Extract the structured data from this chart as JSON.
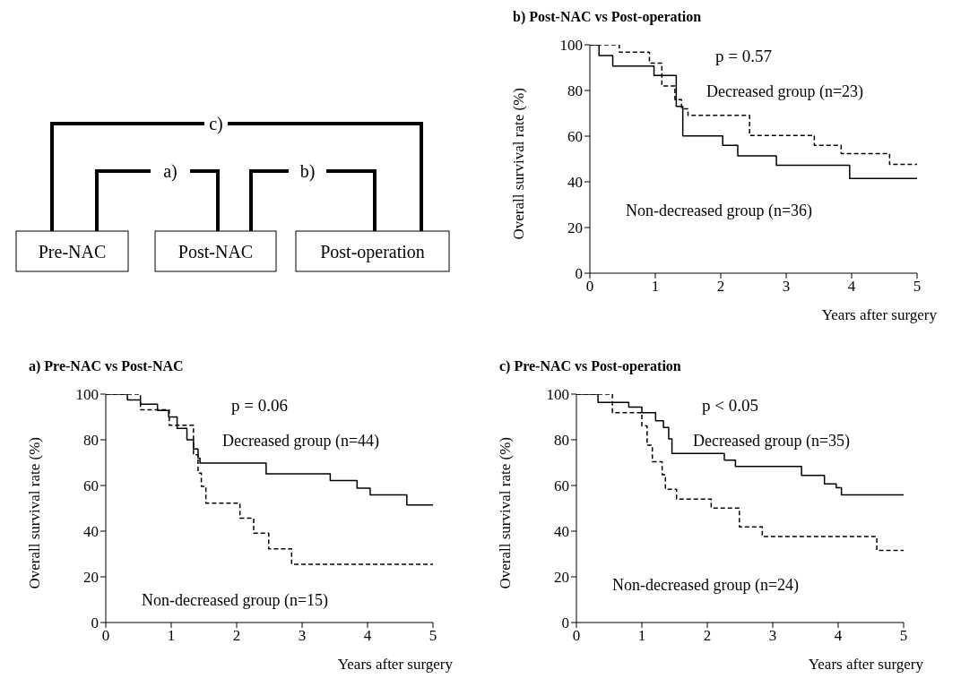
{
  "chart_data": [
    {
      "type": "other",
      "annotations": [
        "c)",
        "a)",
        "b)",
        "Pre-NAC",
        "Post-NAC",
        "Post-operation"
      ]
    },
    {
      "type": "step",
      "title": "b) Post-NAC vs Post-operation",
      "xlabel": "Years after surgery",
      "ylabel": "Overall survival rate (%)",
      "xlim": [
        0,
        5
      ],
      "ylim": [
        0,
        100
      ],
      "xticks": [
        0,
        1,
        2,
        3,
        4,
        5
      ],
      "yticks": [
        0,
        20,
        40,
        60,
        80,
        100
      ],
      "annotations": [
        "p = 0.57"
      ],
      "series": [
        {
          "name": "Decreased group (n=23)",
          "color": "#000000",
          "line_style": "dashed",
          "x": [
            0,
            0.45,
            0.91,
            1.1,
            1.3,
            1.4,
            1.5,
            2.44,
            3.43,
            3.84,
            4.58,
            5
          ],
          "values": [
            100,
            96.8,
            92,
            82,
            76,
            72,
            69.1,
            60.3,
            56,
            52.4,
            47.6,
            47.6
          ]
        },
        {
          "name": "Non-decreased group (n=36)",
          "color": "#000000",
          "line_style": "solid",
          "x": [
            0,
            0.14,
            0.35,
            0.98,
            1.32,
            1.42,
            2.03,
            2.26,
            2.85,
            3.97,
            5
          ],
          "values": [
            100,
            95.3,
            90.7,
            86.6,
            73,
            60.1,
            56,
            51.4,
            47.3,
            41.5,
            41.5
          ]
        }
      ]
    },
    {
      "type": "step",
      "title": "a) Pre-NAC vs Post-NAC",
      "xlabel": "Years after surgery",
      "ylabel": "Overall survival rate (%)",
      "xlim": [
        0,
        5
      ],
      "ylim": [
        0,
        100
      ],
      "xticks": [
        0,
        1,
        2,
        3,
        4,
        5
      ],
      "yticks": [
        0,
        20,
        40,
        60,
        80,
        100
      ],
      "annotations": [
        "p = 0.06"
      ],
      "series": [
        {
          "name": "Decreased group (n=44)",
          "color": "#000000",
          "line_style": "solid",
          "x": [
            0,
            0.33,
            0.53,
            0.79,
            0.96,
            1.09,
            1.24,
            1.34,
            1.41,
            1.44,
            2.45,
            3.43,
            3.84,
            4.04,
            4.6,
            5
          ],
          "values": [
            100,
            97.5,
            95.6,
            92.8,
            90,
            85,
            80,
            76,
            72,
            69.8,
            65.1,
            62.2,
            58.8,
            55.9,
            51.5,
            51.5
          ]
        },
        {
          "name": "Non-decreased group (n=15)",
          "color": "#000000",
          "line_style": "dashed",
          "x": [
            0,
            0.53,
            0.97,
            1.34,
            1.41,
            1.46,
            1.53,
            2.05,
            2.26,
            2.49,
            2.84,
            5
          ],
          "values": [
            100,
            93.1,
            86.4,
            73.4,
            65.4,
            59.6,
            52.3,
            45.7,
            39.1,
            32.3,
            25.5,
            25.5
          ]
        }
      ]
    },
    {
      "type": "step",
      "title": "c) Pre-NAC vs Post-operation",
      "xlabel": "Years after surgery",
      "ylabel": "Overall survival rate (%)",
      "xlim": [
        0,
        5
      ],
      "ylim": [
        0,
        100
      ],
      "xticks": [
        0,
        1,
        2,
        3,
        4,
        5
      ],
      "yticks": [
        0,
        20,
        40,
        60,
        80,
        100
      ],
      "annotations": [
        "p < 0.05"
      ],
      "series": [
        {
          "name": "Decreased group (n=35)",
          "color": "#000000",
          "line_style": "solid",
          "x": [
            0,
            0.33,
            0.8,
            1.0,
            1.21,
            1.33,
            1.41,
            1.46,
            2.26,
            2.43,
            3.44,
            3.79,
            3.97,
            4.05,
            5
          ],
          "values": [
            100,
            96.4,
            94.3,
            91.9,
            88.3,
            85.4,
            80.4,
            74,
            71.1,
            68.3,
            64.4,
            60.7,
            59,
            55.9,
            55.9
          ]
        },
        {
          "name": "Non-decreased group (n=24)",
          "color": "#000000",
          "line_style": "dashed",
          "x": [
            0,
            0.55,
            1.0,
            1.08,
            1.16,
            1.31,
            1.36,
            1.53,
            2.06,
            2.49,
            2.84,
            4.59,
            5
          ],
          "values": [
            100,
            91.9,
            86.1,
            77.6,
            70.4,
            64.7,
            58.3,
            54,
            50.1,
            41.9,
            37.6,
            31.6,
            31.6
          ]
        }
      ]
    }
  ]
}
